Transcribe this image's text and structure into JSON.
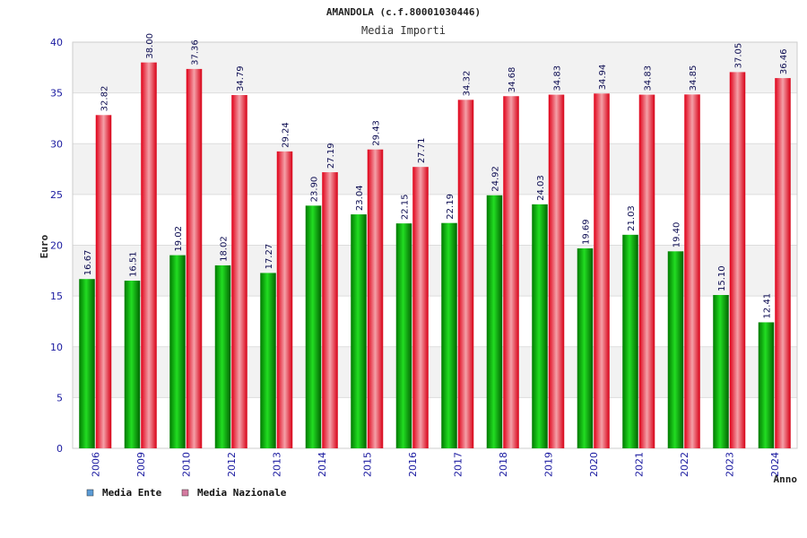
{
  "chart_data": {
    "type": "bar",
    "title": "AMANDOLA (c.f.80001030446)",
    "subtitle": "Media Importi",
    "xlabel": "Anno",
    "ylabel": "Euro",
    "ylim": [
      0,
      40
    ],
    "yticks": [
      0,
      5,
      10,
      15,
      20,
      25,
      30,
      35,
      40
    ],
    "grid": true,
    "legend_position": "bottom-left",
    "categories": [
      "2006",
      "2009",
      "2010",
      "2012",
      "2013",
      "2014",
      "2015",
      "2016",
      "2017",
      "2018",
      "2019",
      "2020",
      "2021",
      "2022",
      "2023",
      "2024"
    ],
    "series": [
      {
        "name": "Media Ente",
        "color": "#00b000",
        "legend_color": "#5b9bd5",
        "values": [
          16.67,
          16.51,
          19.02,
          18.02,
          17.27,
          23.9,
          23.04,
          22.15,
          22.19,
          24.92,
          24.03,
          19.69,
          21.03,
          19.4,
          15.1,
          12.41
        ],
        "labels": [
          "16.67",
          "16.51",
          "19.02",
          "18.02",
          "17.27",
          "23.90",
          "23.04",
          "22.15",
          "22.19",
          "24.92",
          "24.03",
          "19.69",
          "21.03",
          "19.40",
          "15.10",
          "12.41"
        ]
      },
      {
        "name": "Media Nazionale",
        "color": "#e8001a",
        "legend_color": "#d47aa0",
        "values": [
          32.82,
          38.0,
          37.36,
          34.79,
          29.24,
          27.19,
          29.43,
          27.71,
          34.32,
          34.68,
          34.83,
          34.94,
          34.83,
          34.85,
          37.05,
          36.46
        ],
        "labels": [
          "32.82",
          "38.00",
          "37.36",
          "34.79",
          "29.24",
          "27.19",
          "29.43",
          "27.71",
          "34.32",
          "34.68",
          "34.83",
          "34.94",
          "34.83",
          "34.85",
          "37.05",
          "36.46"
        ]
      }
    ]
  }
}
